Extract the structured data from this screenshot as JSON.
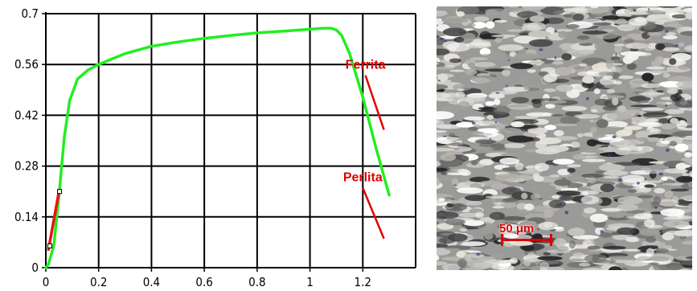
{
  "chart_data": {
    "type": "line",
    "xlim": [
      0,
      1.4
    ],
    "ylim": [
      0,
      0.7
    ],
    "x_ticks": [
      "0",
      "0.2",
      "0.4",
      "0.6",
      "0.8",
      "1",
      "1.2"
    ],
    "y_ticks": [
      "0",
      "0.14",
      "0.28",
      "0.42",
      "0.56",
      "0.7"
    ],
    "grid": true,
    "series": [
      {
        "color": "#22ee22",
        "x": [
          0,
          0.01,
          0.03,
          0.05,
          0.07,
          0.09,
          0.12,
          0.16,
          0.2,
          0.25,
          0.3,
          0.4,
          0.5,
          0.6,
          0.7,
          0.8,
          0.9,
          1.0,
          1.05,
          1.08,
          1.1,
          1.12,
          1.15,
          1.2,
          1.25,
          1.3
        ],
        "y": [
          0,
          0.01,
          0.06,
          0.2,
          0.36,
          0.46,
          0.52,
          0.545,
          0.56,
          0.575,
          0.59,
          0.61,
          0.622,
          0.632,
          0.64,
          0.647,
          0.652,
          0.657,
          0.66,
          0.66,
          0.655,
          0.64,
          0.59,
          0.47,
          0.33,
          0.2
        ]
      },
      {
        "color": "#ee1111",
        "x": [
          0.01,
          0.05
        ],
        "y": [
          0.05,
          0.21
        ]
      }
    ],
    "markers": [
      {
        "x": 0.015,
        "y": 0.06
      },
      {
        "x": 0.052,
        "y": 0.21
      }
    ],
    "annotations": [
      {
        "text": "Ferrita",
        "color": "#e00000",
        "arrow": [
          [
            1.21,
            0.53
          ],
          [
            1.28,
            0.38
          ]
        ]
      },
      {
        "text": "Perlita",
        "color": "#e00000",
        "arrow": [
          [
            1.2,
            0.22
          ],
          [
            1.28,
            0.08
          ]
        ]
      }
    ]
  },
  "micrograph": {
    "scale_bar_label": "50 μm",
    "scale_color": "#e00000"
  }
}
